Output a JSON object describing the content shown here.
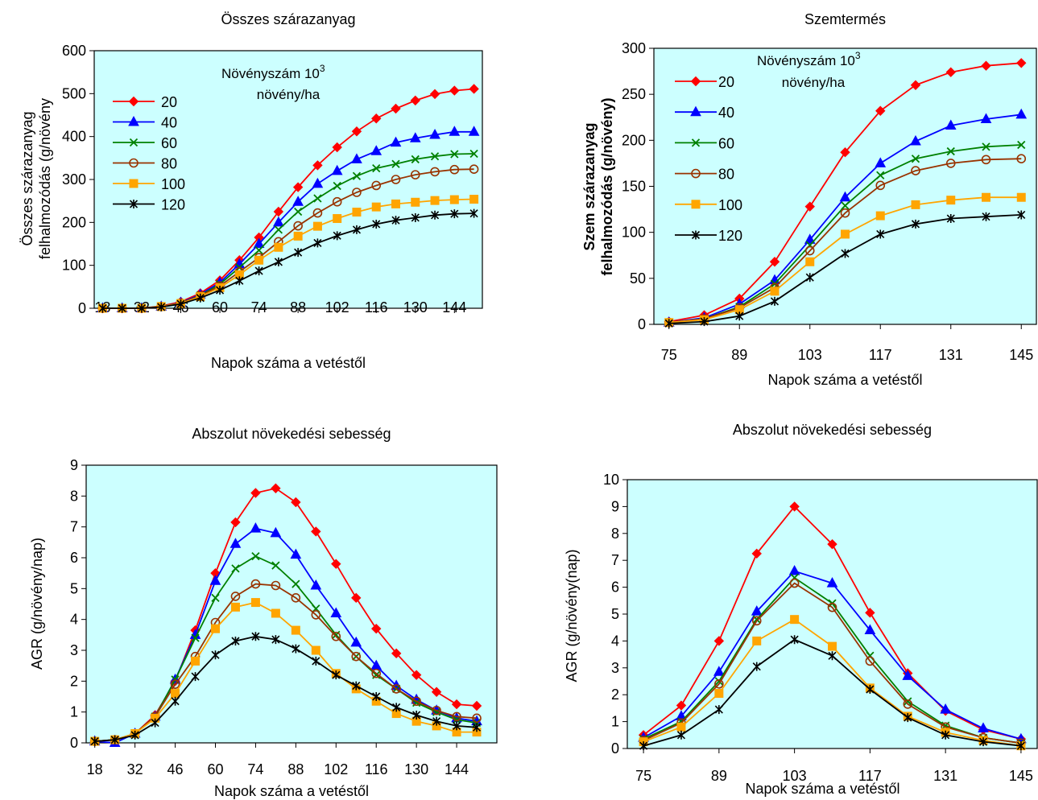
{
  "chart_data": [
    {
      "type": "line",
      "title": "Összes szárazanyag",
      "xlabel": "Napok száma a vetéstől",
      "ylabel": [
        "Összes szárazanyag",
        "felhalmozódás (g/növény"
      ],
      "ylabel_bold": false,
      "xlim": [
        15,
        154
      ],
      "ylim": [
        0,
        600
      ],
      "yticks": [
        0,
        100,
        200,
        300,
        400,
        500,
        600
      ],
      "xticks": [
        18,
        32,
        46,
        60,
        74,
        88,
        102,
        116,
        130,
        144
      ],
      "xtick_labels": [
        "18",
        "32",
        "46",
        "60",
        "74",
        "88",
        "102",
        "116",
        "130",
        "144"
      ],
      "legend_title": [
        "Növényszám 10",
        "3",
        "növény/ha"
      ],
      "legend_position": "top-left",
      "x": [
        18,
        25,
        32,
        39,
        46,
        53,
        60,
        67,
        74,
        81,
        88,
        95,
        102,
        109,
        116,
        123,
        130,
        137,
        144,
        151
      ],
      "series": [
        {
          "name": "20",
          "color": "#ff0000",
          "marker": "diamond",
          "values": [
            0,
            0,
            0,
            5,
            15,
            35,
            65,
            112,
            165,
            225,
            282,
            333,
            375,
            412,
            442,
            465,
            484,
            499,
            507,
            511
          ]
        },
        {
          "name": "40",
          "color": "#0000ff",
          "marker": "triangle",
          "values": [
            0,
            0,
            0,
            4,
            13,
            32,
            60,
            103,
            150,
            200,
            248,
            290,
            320,
            347,
            366,
            386,
            396,
            404,
            411,
            411
          ]
        },
        {
          "name": "60",
          "color": "#008000",
          "marker": "x",
          "values": [
            0,
            0,
            0,
            4,
            12,
            30,
            56,
            95,
            135,
            183,
            225,
            256,
            285,
            308,
            326,
            336,
            347,
            354,
            359,
            360
          ]
        },
        {
          "name": "80",
          "color": "#993300",
          "marker": "circle",
          "values": [
            0,
            0,
            0,
            4,
            12,
            29,
            52,
            85,
            118,
            155,
            192,
            222,
            248,
            270,
            286,
            300,
            311,
            318,
            323,
            324
          ]
        },
        {
          "name": "100",
          "color": "#ffa500",
          "marker": "square",
          "values": [
            0,
            0,
            0,
            4,
            11,
            27,
            48,
            78,
            112,
            142,
            168,
            191,
            209,
            224,
            236,
            243,
            247,
            251,
            253,
            254
          ]
        },
        {
          "name": "120",
          "color": "#000000",
          "marker": "star",
          "values": [
            0,
            0,
            0,
            3,
            10,
            24,
            42,
            64,
            87,
            108,
            130,
            152,
            169,
            183,
            196,
            205,
            211,
            217,
            220,
            221
          ]
        }
      ]
    },
    {
      "type": "line",
      "title": "Szemtermés",
      "xlabel": "Napok száma a vetéstől",
      "ylabel": [
        "Szem szárazanyag",
        "felhalmozódás (g/növény)"
      ],
      "ylabel_bold": true,
      "xlim": [
        72,
        148
      ],
      "ylim": [
        0,
        300
      ],
      "yticks": [
        0,
        50,
        100,
        150,
        200,
        250,
        300
      ],
      "xticks": [
        75,
        89,
        103,
        117,
        131,
        145
      ],
      "xtick_labels": [
        "75",
        "89",
        "103",
        "117",
        "131",
        "145"
      ],
      "legend_title": [
        "Növényszám 10",
        "3",
        "növény/ha"
      ],
      "legend_position": "top-left",
      "x": [
        75,
        82,
        89,
        96,
        103,
        110,
        117,
        124,
        131,
        138,
        145
      ],
      "series": [
        {
          "name": "20",
          "color": "#ff0000",
          "marker": "diamond",
          "values": [
            3,
            10,
            28,
            68,
            128,
            187,
            232,
            260,
            274,
            281,
            284
          ]
        },
        {
          "name": "40",
          "color": "#0000ff",
          "marker": "triangle",
          "values": [
            2,
            7,
            22,
            48,
            92,
            138,
            175,
            199,
            216,
            223,
            228
          ]
        },
        {
          "name": "60",
          "color": "#008000",
          "marker": "x",
          "values": [
            2,
            6,
            19,
            44,
            86,
            129,
            162,
            180,
            188,
            193,
            195
          ]
        },
        {
          "name": "80",
          "color": "#993300",
          "marker": "circle",
          "values": [
            2,
            6,
            18,
            40,
            80,
            121,
            151,
            167,
            175,
            179,
            180
          ]
        },
        {
          "name": "100",
          "color": "#ffa500",
          "marker": "square",
          "values": [
            2,
            5,
            16,
            36,
            68,
            98,
            118,
            130,
            135,
            138,
            138
          ]
        },
        {
          "name": "120",
          "color": "#000000",
          "marker": "star",
          "values": [
            1,
            3,
            9,
            25,
            51,
            77,
            98,
            109,
            115,
            117,
            119
          ]
        }
      ]
    },
    {
      "type": "line",
      "title": "Abszolut növekedési sebesség",
      "xlabel": "Napok száma a vetéstől",
      "ylabel": [
        "AGR (g/növény/nap)"
      ],
      "ylabel_bold": false,
      "xlim": [
        15,
        158
      ],
      "ylim": [
        0,
        9
      ],
      "yticks": [
        0,
        1,
        2,
        3,
        4,
        5,
        6,
        7,
        8,
        9
      ],
      "xticks": [
        18,
        32,
        46,
        60,
        74,
        88,
        102,
        116,
        130,
        144
      ],
      "xtick_labels": [
        "18",
        "32",
        "46",
        "60",
        "74",
        "88",
        "102",
        "116",
        "130",
        "144"
      ],
      "x": [
        18,
        25,
        32,
        39,
        46,
        53,
        60,
        67,
        74,
        81,
        88,
        95,
        102,
        109,
        116,
        123,
        130,
        137,
        144,
        151
      ],
      "series": [
        {
          "name": "20",
          "color": "#ff0000",
          "marker": "diamond",
          "values": [
            0.05,
            0.1,
            0.3,
            0.9,
            2.0,
            3.65,
            5.5,
            7.15,
            8.1,
            8.25,
            7.8,
            6.85,
            5.8,
            4.7,
            3.7,
            2.9,
            2.2,
            1.65,
            1.25,
            1.2
          ]
        },
        {
          "name": "40",
          "color": "#0000ff",
          "marker": "triangle",
          "values": [
            0.05,
            0.0,
            0.3,
            0.85,
            2.05,
            3.5,
            5.25,
            6.45,
            6.95,
            6.8,
            6.1,
            5.1,
            4.2,
            3.25,
            2.5,
            1.85,
            1.4,
            1.05,
            0.8,
            0.7
          ]
        },
        {
          "name": "60",
          "color": "#008000",
          "marker": "x",
          "values": [
            0.05,
            0.1,
            0.3,
            0.85,
            2.05,
            3.4,
            4.7,
            5.65,
            6.05,
            5.75,
            5.15,
            4.35,
            3.5,
            2.8,
            2.2,
            1.75,
            1.3,
            1.0,
            0.75,
            0.65
          ]
        },
        {
          "name": "80",
          "color": "#993300",
          "marker": "circle",
          "values": [
            0.05,
            0.1,
            0.3,
            0.85,
            1.9,
            2.8,
            3.9,
            4.75,
            5.15,
            5.1,
            4.7,
            4.15,
            3.45,
            2.8,
            2.25,
            1.75,
            1.35,
            1.05,
            0.85,
            0.8
          ]
        },
        {
          "name": "100",
          "color": "#ffa500",
          "marker": "square",
          "values": [
            0.05,
            0.1,
            0.3,
            0.8,
            1.6,
            2.65,
            3.7,
            4.4,
            4.55,
            4.2,
            3.65,
            3.0,
            2.25,
            1.75,
            1.35,
            0.95,
            0.7,
            0.55,
            0.35,
            0.35
          ]
        },
        {
          "name": "120",
          "color": "#000000",
          "marker": "star",
          "values": [
            0.05,
            0.1,
            0.25,
            0.65,
            1.35,
            2.15,
            2.85,
            3.3,
            3.45,
            3.35,
            3.05,
            2.65,
            2.2,
            1.85,
            1.5,
            1.15,
            0.9,
            0.7,
            0.55,
            0.5
          ]
        }
      ]
    },
    {
      "type": "line",
      "title": "Abszolut növekedési sebesség",
      "xlabel": "Napok száma a vetéstől",
      "ylabel": [
        "AGR (g/növény(nap)"
      ],
      "ylabel_bold": false,
      "xlim": [
        72,
        148
      ],
      "ylim": [
        0,
        10
      ],
      "yticks": [
        0,
        1,
        2,
        3,
        4,
        5,
        6,
        7,
        8,
        9,
        10
      ],
      "xticks": [
        75,
        89,
        103,
        117,
        131,
        145
      ],
      "xtick_labels": [
        "75",
        "89",
        "103",
        "117",
        "131",
        "145"
      ],
      "x": [
        75,
        82,
        89,
        96,
        103,
        110,
        117,
        124,
        131,
        138,
        145
      ],
      "series": [
        {
          "name": "20",
          "color": "#ff0000",
          "marker": "diamond",
          "values": [
            0.5,
            1.6,
            4.0,
            7.25,
            9.0,
            7.6,
            5.05,
            2.8,
            1.4,
            0.7,
            0.35
          ]
        },
        {
          "name": "40",
          "color": "#0000ff",
          "marker": "triangle",
          "values": [
            0.4,
            1.2,
            2.85,
            5.1,
            6.6,
            6.15,
            4.4,
            2.7,
            1.45,
            0.75,
            0.35
          ]
        },
        {
          "name": "60",
          "color": "#008000",
          "marker": "x",
          "values": [
            0.35,
            1.0,
            2.5,
            4.8,
            6.35,
            5.4,
            3.45,
            1.75,
            0.85,
            0.4,
            0.2
          ]
        },
        {
          "name": "80",
          "color": "#993300",
          "marker": "circle",
          "values": [
            0.3,
            0.95,
            2.4,
            4.75,
            6.15,
            5.25,
            3.25,
            1.65,
            0.8,
            0.4,
            0.2
          ]
        },
        {
          "name": "100",
          "color": "#ffa500",
          "marker": "square",
          "values": [
            0.25,
            0.8,
            2.05,
            4.0,
            4.8,
            3.8,
            2.25,
            1.2,
            0.6,
            0.3,
            0.1
          ]
        },
        {
          "name": "120",
          "color": "#000000",
          "marker": "star",
          "values": [
            0.1,
            0.5,
            1.45,
            3.05,
            4.05,
            3.45,
            2.2,
            1.15,
            0.5,
            0.25,
            0.1
          ]
        }
      ]
    }
  ]
}
